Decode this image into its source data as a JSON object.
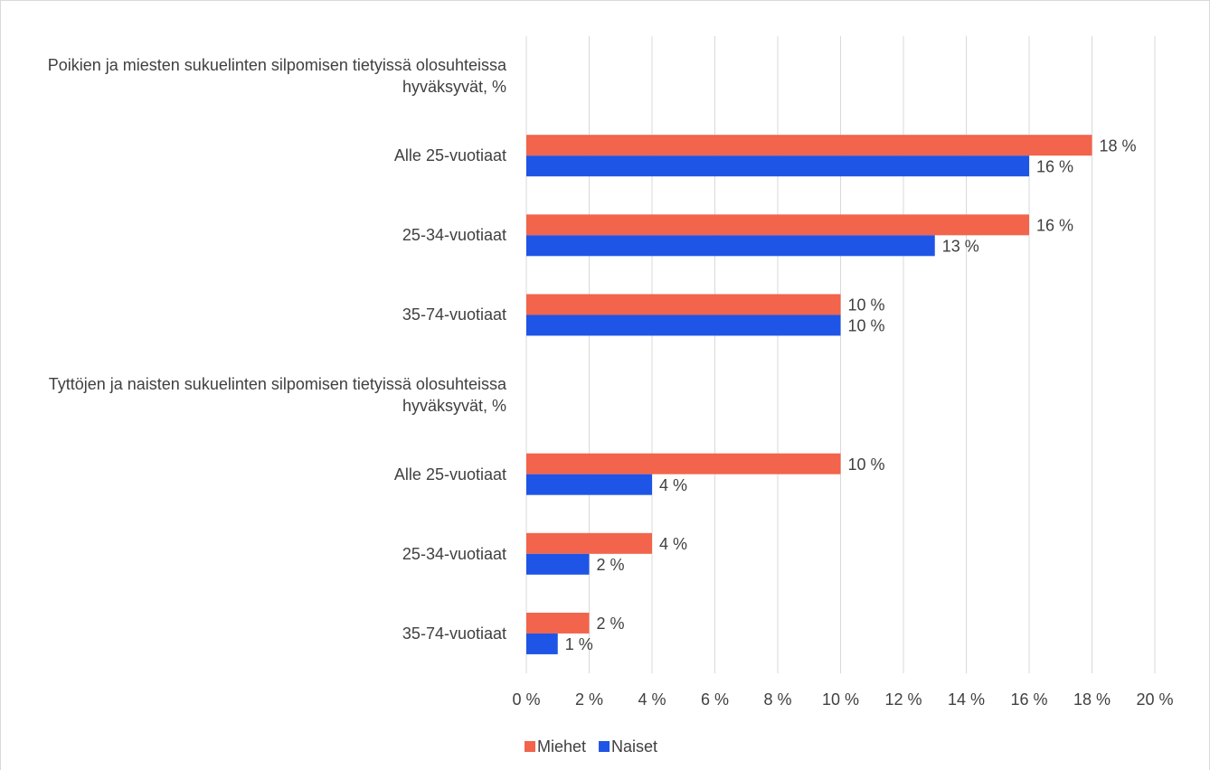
{
  "chart_data": {
    "type": "bar",
    "orientation": "horizontal",
    "categories": [
      "Poikien ja miesten sukuelinten silpomisen tietyissä olosuhteissa hyväksyvät, %",
      "Alle 25-vuotiaat",
      "25-34-vuotiaat",
      "35-74-vuotiaat",
      "Tyttöjen ja naisten sukuelinten silpomisen tietyissä olosuhteissa hyväksyvät, %",
      "Alle 25-vuotiaat",
      "25-34-vuotiaat",
      "35-74-vuotiaat"
    ],
    "series": [
      {
        "name": "Miehet",
        "color": "#f2644b",
        "values": [
          null,
          18,
          16,
          10,
          null,
          10,
          4,
          2
        ],
        "value_labels": [
          null,
          "18 %",
          "16 %",
          "10 %",
          null,
          "10 %",
          "4 %",
          "2 %"
        ]
      },
      {
        "name": "Naiset",
        "color": "#1f55e6",
        "values": [
          null,
          16,
          13,
          10,
          null,
          4,
          2,
          1
        ],
        "value_labels": [
          null,
          "16 %",
          "13 %",
          "10 %",
          null,
          "4 %",
          "2 %",
          "1 %"
        ]
      }
    ],
    "xlim": [
      0,
      20
    ],
    "xticks": [
      {
        "value": 0,
        "label": "0 %"
      },
      {
        "value": 2,
        "label": "2 %"
      },
      {
        "value": 4,
        "label": "4 %"
      },
      {
        "value": 6,
        "label": "6 %"
      },
      {
        "value": 8,
        "label": "8 %"
      },
      {
        "value": 10,
        "label": "10 %"
      },
      {
        "value": 12,
        "label": "12 %"
      },
      {
        "value": 14,
        "label": "14 %"
      },
      {
        "value": 16,
        "label": "16 %"
      },
      {
        "value": 18,
        "label": "18 %"
      },
      {
        "value": 20,
        "label": "20 %"
      }
    ],
    "grid": true,
    "legend": "bottom"
  }
}
